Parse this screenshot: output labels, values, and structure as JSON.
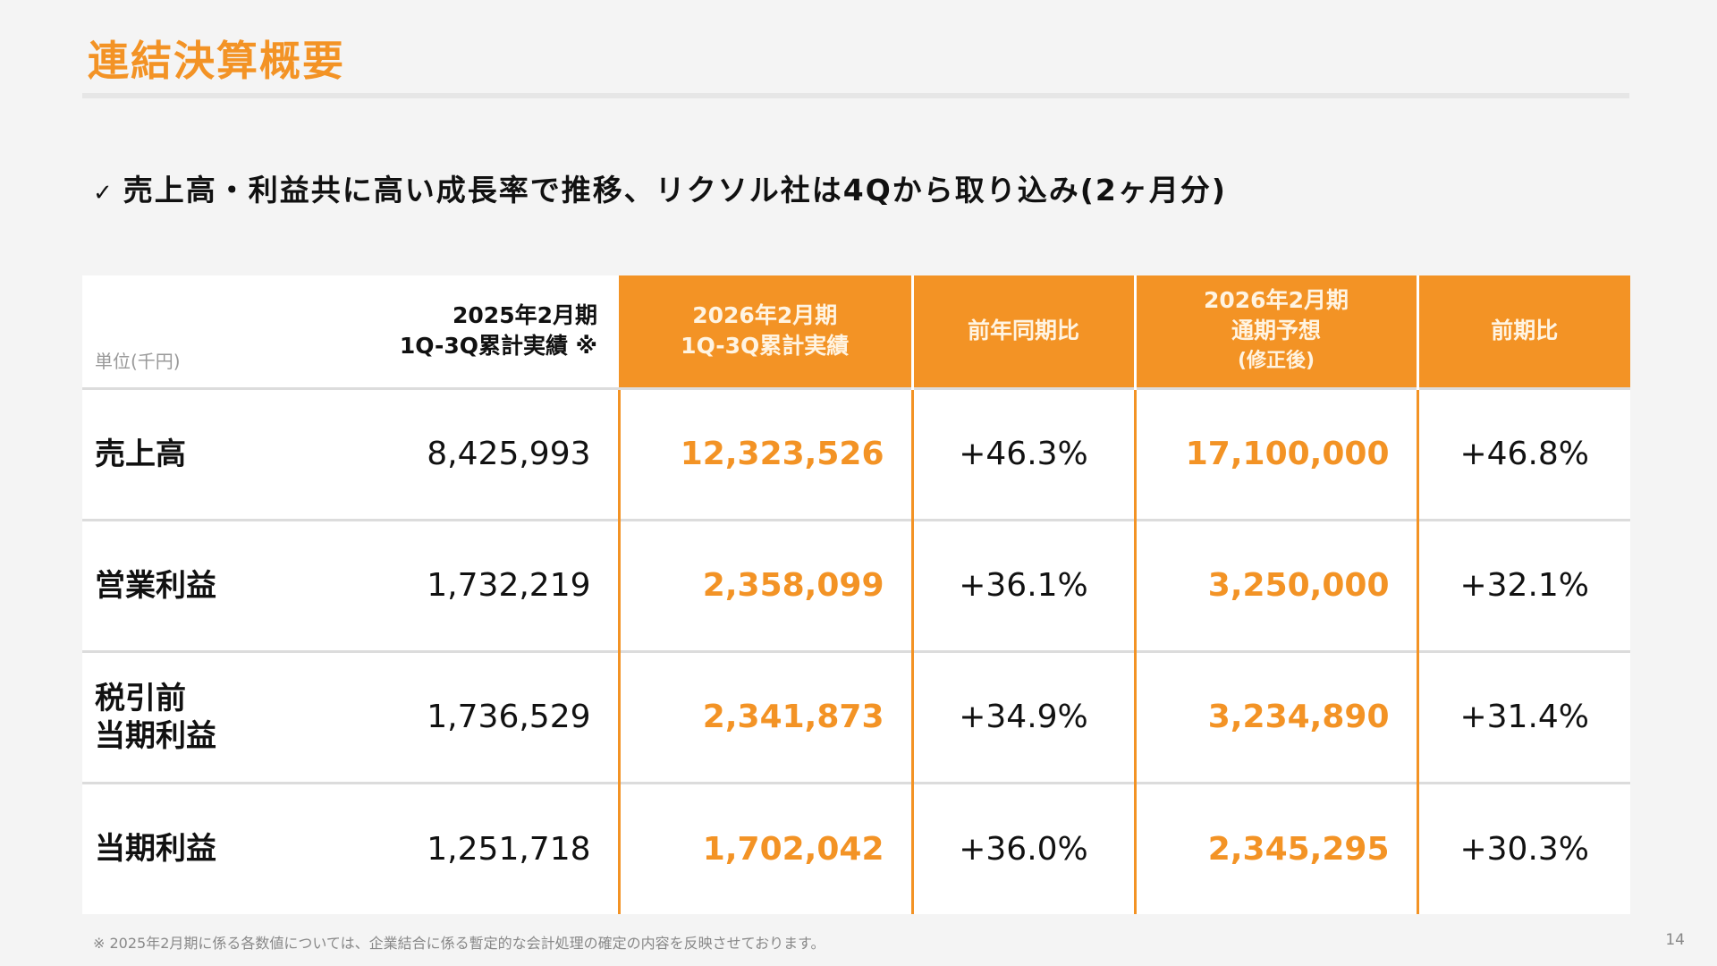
{
  "title": "連結決算概要",
  "subtitle": {
    "check": "✓",
    "text": "売上高・利益共に高い成長率で推移、リクソル社は4Qから取り込み(2ヶ月分)"
  },
  "table": {
    "unit": "単位(千円)",
    "headers": [
      {
        "line1": "2025年2月期",
        "line2": "1Q-3Q累計実績 ※"
      },
      {
        "line1": "2026年2月期",
        "line2": "1Q-3Q累計実績"
      },
      {
        "line1": "前年同期比"
      },
      {
        "line1": "2026年2月期",
        "line2": "通期予想",
        "line3": "(修正後)"
      },
      {
        "line1": "前期比"
      }
    ],
    "rows": [
      {
        "label": "売上高",
        "prev": "8,425,993",
        "cur": "12,323,526",
        "yoy": "+46.3%",
        "forecast": "17,100,000",
        "vs": "+46.8%"
      },
      {
        "label": "営業利益",
        "prev": "1,732,219",
        "cur": "2,358,099",
        "yoy": "+36.1%",
        "forecast": "3,250,000",
        "vs": "+32.1%"
      },
      {
        "label": "税引前\n当期利益",
        "prev": "1,736,529",
        "cur": "2,341,873",
        "yoy": "+34.9%",
        "forecast": "3,234,890",
        "vs": "+31.4%"
      },
      {
        "label": "当期利益",
        "prev": "1,251,718",
        "cur": "1,702,042",
        "yoy": "+36.0%",
        "forecast": "2,345,295",
        "vs": "+30.3%"
      }
    ]
  },
  "footnote": "※ 2025年2月期に係る各数値については、企業結合に係る暫定的な会計処理の確定の内容を反映させております。",
  "page_number": "14",
  "colors": {
    "accent": "#f39325"
  }
}
